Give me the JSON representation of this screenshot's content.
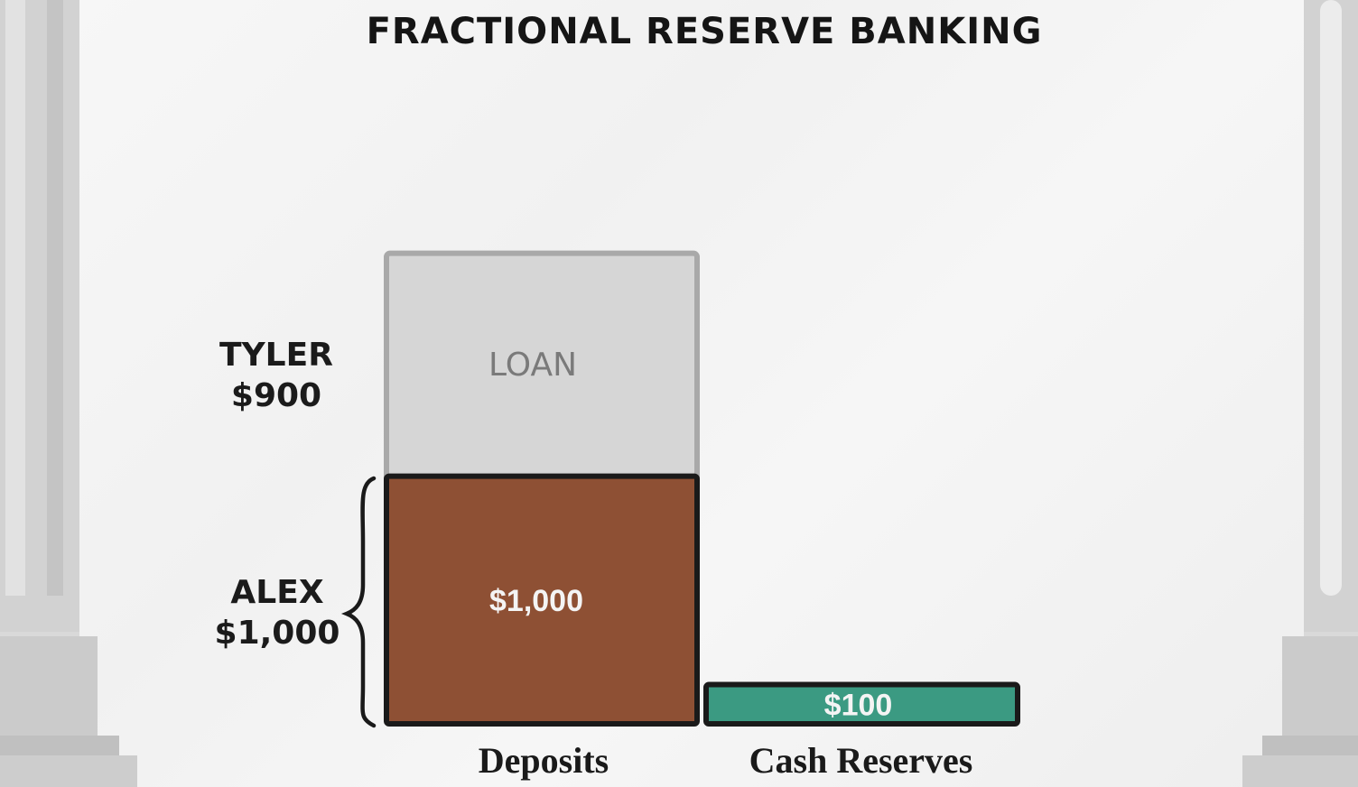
{
  "chart_data": {
    "type": "bar",
    "title": "FRACTIONAL RESERVE BANKING",
    "categories": [
      "Deposits",
      "Cash Reserves"
    ],
    "series": [
      {
        "name": "ALEX",
        "label": "$1,000",
        "values": [
          1000,
          0
        ],
        "color": "#8e5034"
      },
      {
        "name": "TYLER",
        "label": "LOAN",
        "values": [
          900,
          0
        ],
        "color": "#d6d6d6"
      },
      {
        "name": "Reserves",
        "label": "$100",
        "values": [
          0,
          100
        ],
        "color": "#3b9a82"
      }
    ],
    "annotations": [
      {
        "name": "TYLER",
        "amount": "$900"
      },
      {
        "name": "ALEX",
        "amount": "$1,000"
      }
    ],
    "ylim": [
      0,
      2000
    ]
  }
}
